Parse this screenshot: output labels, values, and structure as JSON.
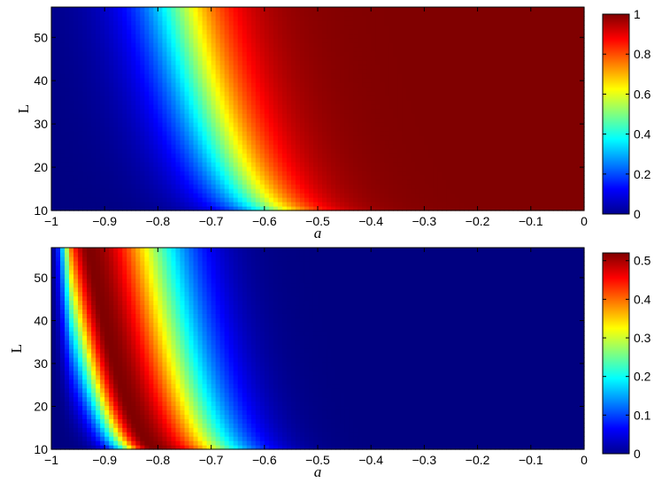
{
  "chart_data": [
    {
      "type": "heatmap",
      "xlabel": "a",
      "ylabel": "L",
      "xlim": [
        -1,
        0
      ],
      "ylim": [
        10,
        57
      ],
      "x_ticks": [
        -1,
        -0.9,
        -0.8,
        -0.7,
        -0.6,
        -0.5,
        -0.4,
        -0.3,
        -0.2,
        -0.1,
        0
      ],
      "x_tick_labels": [
        "−1",
        "−0.9",
        "−0.8",
        "−0.7",
        "−0.6",
        "−0.5",
        "−0.4",
        "−0.3",
        "−0.2",
        "−0.1",
        "0"
      ],
      "y_ticks": [
        10,
        20,
        30,
        40,
        50
      ],
      "y_tick_labels": [
        "10",
        "20",
        "30",
        "40",
        "50"
      ],
      "colormap": "jet",
      "colorbar": {
        "range": [
          0,
          1
        ],
        "ticks": [
          0,
          0.2,
          0.4,
          0.6,
          0.8,
          1
        ],
        "tick_labels": [
          "0",
          "0.2",
          "0.4",
          "0.6",
          "0.8",
          "1"
        ]
      },
      "grid": false,
      "description_values": {
        "value_at_half_level_a": [
          {
            "L": 10,
            "a": -0.62
          },
          {
            "L": 20,
            "a": -0.68
          },
          {
            "L": 30,
            "a": -0.72
          },
          {
            "L": 40,
            "a": -0.74
          },
          {
            "L": 57,
            "a": -0.76
          }
        ]
      }
    },
    {
      "type": "heatmap",
      "xlabel": "a",
      "ylabel": "L",
      "xlim": [
        -1,
        0
      ],
      "ylim": [
        10,
        57
      ],
      "x_ticks": [
        -1,
        -0.9,
        -0.8,
        -0.7,
        -0.6,
        -0.5,
        -0.4,
        -0.3,
        -0.2,
        -0.1,
        0
      ],
      "x_tick_labels": [
        "−1",
        "−0.9",
        "−0.8",
        "−0.7",
        "−0.6",
        "−0.5",
        "−0.4",
        "−0.3",
        "−0.2",
        "−0.1",
        "0"
      ],
      "y_ticks": [
        10,
        20,
        30,
        40,
        50
      ],
      "y_tick_labels": [
        "10",
        "20",
        "30",
        "40",
        "50"
      ],
      "colormap": "jet",
      "colorbar": {
        "range": [
          0,
          0.52
        ],
        "ticks": [
          0,
          0.1,
          0.2,
          0.3,
          0.4,
          0.5
        ],
        "tick_labels": [
          "0",
          "0.1",
          "0.2",
          "0.3",
          "0.4",
          "0.5"
        ]
      },
      "grid": false,
      "description_values": {
        "peak_a_by_L": [
          {
            "L": 10,
            "a": -0.82,
            "value": 0.5
          },
          {
            "L": 20,
            "a": -0.87,
            "value": 0.5
          },
          {
            "L": 30,
            "a": -0.9,
            "value": 0.5
          },
          {
            "L": 40,
            "a": -0.92,
            "value": 0.5
          },
          {
            "L": 57,
            "a": -0.93,
            "value": 0.5
          }
        ]
      }
    }
  ]
}
